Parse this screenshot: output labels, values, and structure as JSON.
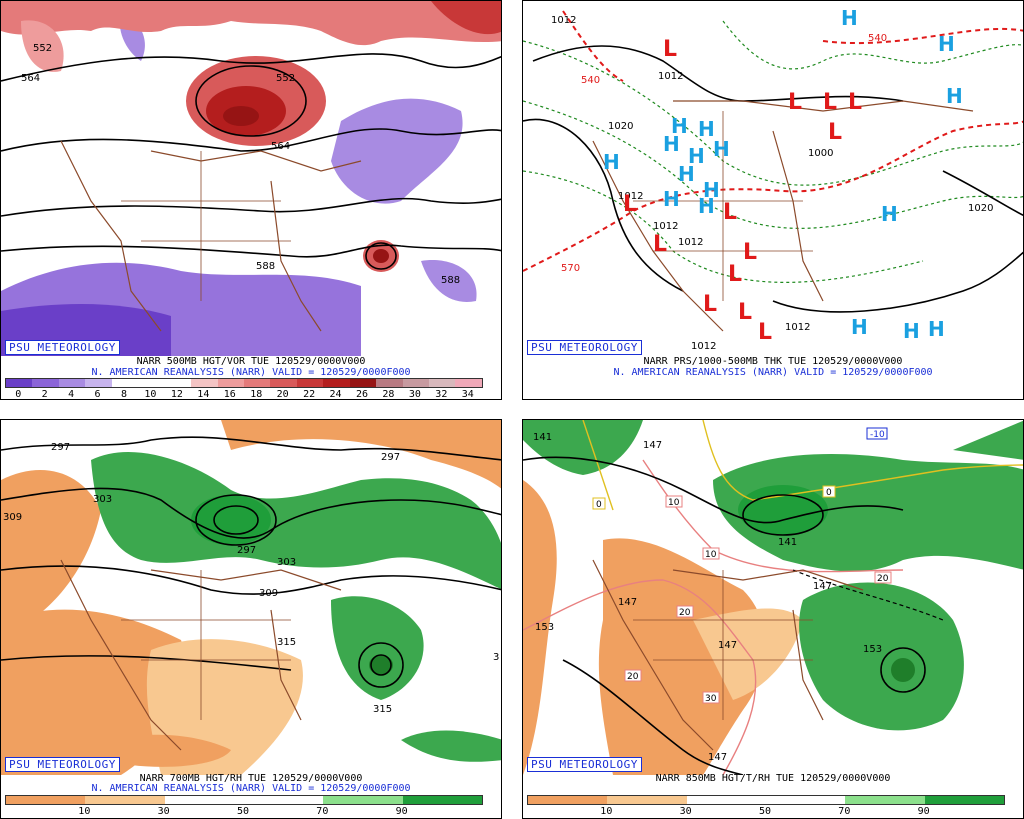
{
  "panels": [
    {
      "badge": "PSU METEOROLOGY",
      "title_line1": "NARR 500MB HGT/VOR TUE 120529/0000V000",
      "title_line2": "N. AMERICAN REANALYSIS (NARR) VALID = 120529/0000F000",
      "contour_labels": [
        "552",
        "564",
        "552",
        "564",
        "588",
        "588"
      ],
      "colorbar": {
        "ticks": [
          "0",
          "2",
          "4",
          "6",
          "8",
          "10",
          "12",
          "14",
          "16",
          "18",
          "20",
          "22",
          "24",
          "26",
          "28",
          "30",
          "32",
          "34"
        ],
        "colors": [
          "#6a3fc8",
          "#8b64d8",
          "#a88be2",
          "#c7b4ee",
          "#ffffff",
          "#ffffff",
          "#ffffff",
          "#f4c4c4",
          "#ee9c9c",
          "#e47a7a",
          "#d85a5a",
          "#c83838",
          "#b41e1e",
          "#961414",
          "#b87a82",
          "#c79aa0",
          "#d8b8bc",
          "#f0a8b8"
        ]
      }
    },
    {
      "badge": "PSU METEOROLOGY",
      "title_line1": "NARR PRS/1000-500MB THK TUE 120529/0000V000",
      "title_line2": "N. AMERICAN REANALYSIS (NARR) VALID = 120529/0000F000",
      "contour_labels": [
        "1012",
        "1012",
        "1020",
        "1012",
        "1012",
        "1012",
        "1012",
        "1012",
        "1020",
        "540",
        "570",
        "540",
        "1000"
      ],
      "lows": [
        "L",
        "L",
        "L",
        "L",
        "L",
        "L",
        "L",
        "L",
        "L",
        "L",
        "L",
        "L",
        "L"
      ],
      "highs": [
        "H",
        "H",
        "H",
        "H",
        "H",
        "H",
        "H",
        "H",
        "H",
        "H",
        "H",
        "H",
        "H",
        "H",
        "H",
        "H",
        "H"
      ]
    },
    {
      "badge": "PSU METEOROLOGY",
      "title_line1": "NARR 700MB HGT/RH TUE 120529/0000V000",
      "title_line2": "N. AMERICAN REANALYSIS (NARR) VALID = 120529/0000F000",
      "contour_labels": [
        "297",
        "297",
        "303",
        "309",
        "297",
        "303",
        "309",
        "315",
        "315",
        "3"
      ],
      "colorbar": {
        "ticks": [
          "10",
          "30",
          "50",
          "70",
          "90"
        ],
        "colors": [
          "#f0a060",
          "#f8c890",
          "#ffffff",
          "#ffffff",
          "#8ce08c",
          "#1f9e3a"
        ]
      }
    },
    {
      "badge": "PSU METEOROLOGY",
      "title_line1": "NARR 850MB HGT/T/RH TUE 120529/0000V000",
      "title_line2": "",
      "contour_labels": [
        "141",
        "147",
        "153",
        "147",
        "147",
        "141",
        "147",
        "153",
        "147",
        "-10",
        "0",
        "0",
        "10",
        "10",
        "20",
        "20",
        "20",
        "30"
      ],
      "colorbar": {
        "ticks": [
          "10",
          "30",
          "50",
          "70",
          "90"
        ],
        "colors": [
          "#f0a060",
          "#f8c890",
          "#ffffff",
          "#ffffff",
          "#8ce08c",
          "#1f9e3a"
        ]
      }
    }
  ],
  "colors": {
    "low": "#e01a1a",
    "high": "#1aa0e0",
    "text_blue": "#1a2fd6",
    "map_brown": "#8b4a2b"
  }
}
